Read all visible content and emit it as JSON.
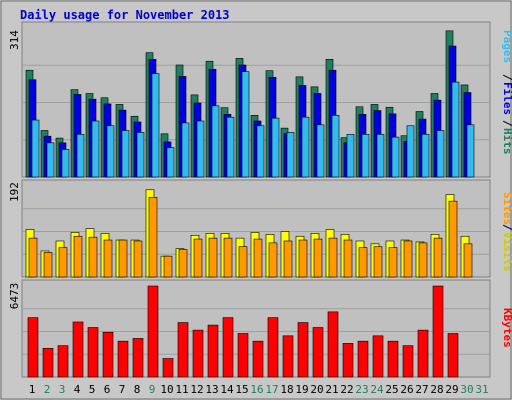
{
  "chart_data": [
    {
      "type": "bar",
      "title": "Daily usage for November 2013",
      "y_max_label": "314",
      "categories": [
        "1",
        "2",
        "3",
        "4",
        "5",
        "6",
        "7",
        "8",
        "9",
        "10",
        "11",
        "12",
        "13",
        "14",
        "15",
        "16",
        "17",
        "18",
        "19",
        "20",
        "21",
        "22",
        "23",
        "24",
        "25",
        "26",
        "27",
        "28",
        "29",
        "30",
        "31"
      ],
      "weekend_days": [
        "2",
        "3",
        "9",
        "16",
        "17",
        "23",
        "24",
        "30",
        "31"
      ],
      "ylim": [
        0,
        314
      ],
      "series": [
        {
          "name": "Hits",
          "color": "#1f7f5f",
          "values": [
            225,
            98,
            82,
            184,
            176,
            167,
            153,
            128,
            262,
            91,
            236,
            173,
            244,
            146,
            250,
            130,
            224,
            103,
            211,
            190,
            248,
            83,
            148,
            153,
            147,
            87,
            138,
            176,
            308,
            194,
            null
          ]
        },
        {
          "name": "Files",
          "color": "#0000e0",
          "values": [
            205,
            86,
            72,
            174,
            164,
            154,
            141,
            116,
            248,
            74,
            212,
            156,
            227,
            132,
            236,
            118,
            210,
            91,
            193,
            176,
            225,
            72,
            132,
            140,
            133,
            75,
            122,
            162,
            276,
            178,
            null
          ]
        },
        {
          "name": "Pages",
          "color": "#33bbee",
          "values": [
            120,
            72,
            58,
            90,
            118,
            108,
            98,
            94,
            218,
            62,
            114,
            118,
            150,
            126,
            222,
            108,
            124,
            94,
            126,
            110,
            130,
            90,
            90,
            90,
            84,
            108,
            90,
            98,
            200,
            110,
            null
          ]
        }
      ]
    },
    {
      "type": "bar",
      "y_max_label": "192",
      "categories": [
        "1",
        "2",
        "3",
        "4",
        "5",
        "6",
        "7",
        "8",
        "9",
        "10",
        "11",
        "12",
        "13",
        "14",
        "15",
        "16",
        "17",
        "18",
        "19",
        "20",
        "21",
        "22",
        "23",
        "24",
        "25",
        "26",
        "27",
        "28",
        "29",
        "30",
        "31"
      ],
      "ylim": [
        0,
        192
      ],
      "series": [
        {
          "name": "Visits",
          "color": "#ffff00",
          "values": [
            100,
            55,
            76,
            94,
            102,
            92,
            78,
            78,
            184,
            44,
            60,
            88,
            92,
            92,
            82,
            94,
            90,
            96,
            86,
            92,
            100,
            90,
            76,
            70,
            76,
            78,
            74,
            90,
            174,
            86,
            null
          ]
        },
        {
          "name": "Sites",
          "color": "#ff9900",
          "values": [
            82,
            52,
            62,
            86,
            84,
            78,
            78,
            76,
            168,
            44,
            58,
            80,
            82,
            82,
            64,
            80,
            72,
            76,
            78,
            80,
            82,
            78,
            62,
            64,
            62,
            76,
            72,
            82,
            160,
            70,
            null
          ]
        }
      ]
    },
    {
      "type": "bar",
      "y_max_label": "6473",
      "categories": [
        "1",
        "2",
        "3",
        "4",
        "5",
        "6",
        "7",
        "8",
        "9",
        "10",
        "11",
        "12",
        "13",
        "14",
        "15",
        "16",
        "17",
        "18",
        "19",
        "20",
        "21",
        "22",
        "23",
        "24",
        "25",
        "26",
        "27",
        "28",
        "29",
        "30",
        "31"
      ],
      "ylim": [
        0,
        6473
      ],
      "series": [
        {
          "name": "KBytes",
          "color": "#ff0000",
          "values": [
            4224,
            2040,
            2230,
            3914,
            3521,
            3184,
            2549,
            2742,
            6473,
            1315,
            3873,
            3335,
            3692,
            4224,
            3095,
            2549,
            4224,
            2930,
            3873,
            3521,
            4633,
            2390,
            2549,
            2930,
            2549,
            2230,
            3335,
            6473,
            3095,
            null,
            null
          ]
        }
      ]
    }
  ]
}
